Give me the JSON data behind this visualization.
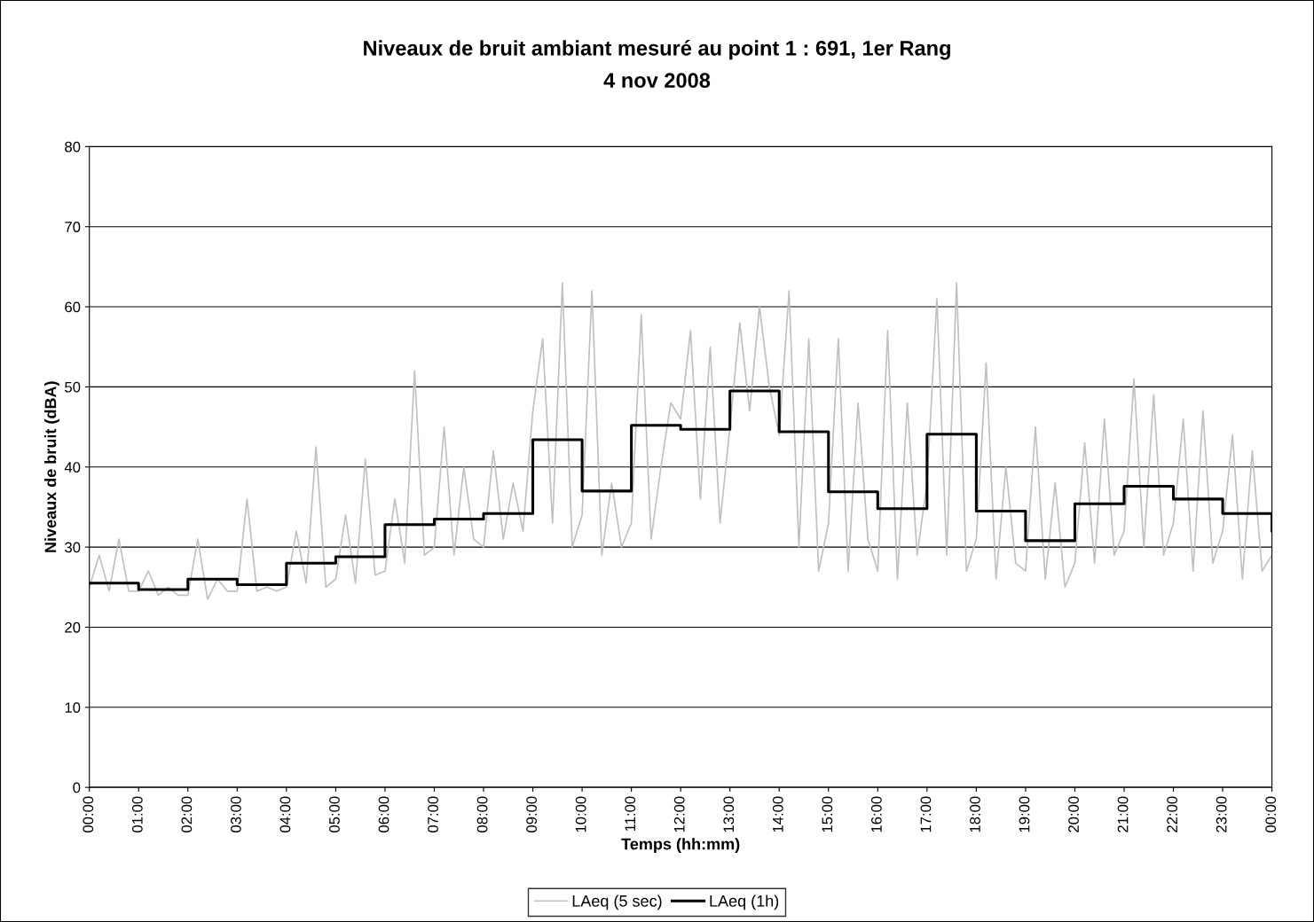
{
  "chart_data": {
    "type": "line",
    "title": "Niveaux de bruit ambiant mesuré au point 1 : 691, 1er Rang",
    "subtitle": "4 nov 2008",
    "xlabel": "Temps (hh:mm)",
    "ylabel": "Niveaux de bruit (dBA)",
    "xlim": [
      0,
      24
    ],
    "ylim": [
      0,
      80
    ],
    "yticks": [
      0,
      10,
      20,
      30,
      40,
      50,
      60,
      70,
      80
    ],
    "xticks": [
      {
        "value": 0,
        "label": "00:00"
      },
      {
        "value": 1,
        "label": "01:00"
      },
      {
        "value": 2,
        "label": "02:00"
      },
      {
        "value": 3,
        "label": "03:00"
      },
      {
        "value": 4,
        "label": "04:00"
      },
      {
        "value": 5,
        "label": "05:00"
      },
      {
        "value": 6,
        "label": "06:00"
      },
      {
        "value": 7,
        "label": "07:00"
      },
      {
        "value": 8,
        "label": "08:00"
      },
      {
        "value": 9,
        "label": "09:00"
      },
      {
        "value": 10,
        "label": "10:00"
      },
      {
        "value": 11,
        "label": "11:00"
      },
      {
        "value": 12,
        "label": "12:00"
      },
      {
        "value": 13,
        "label": "13:00"
      },
      {
        "value": 14,
        "label": "14:00"
      },
      {
        "value": 15,
        "label": "15:00"
      },
      {
        "value": 16,
        "label": "16:00"
      },
      {
        "value": 17,
        "label": "17:00"
      },
      {
        "value": 18,
        "label": "18:00"
      },
      {
        "value": 19,
        "label": "19:00"
      },
      {
        "value": 20,
        "label": "20:00"
      },
      {
        "value": 21,
        "label": "21:00"
      },
      {
        "value": 22,
        "label": "22:00"
      },
      {
        "value": 23,
        "label": "23:00"
      },
      {
        "value": 24,
        "label": "00:00"
      }
    ],
    "grid": "y",
    "legend": "bottom",
    "marker": "none",
    "series": [
      {
        "name": "LAeq (5 sec)",
        "color": "#c0c0c0",
        "x": [
          0,
          0.2,
          0.4,
          0.6,
          0.8,
          1,
          1.2,
          1.4,
          1.6,
          1.8,
          2,
          2.2,
          2.4,
          2.6,
          2.8,
          3,
          3.2,
          3.4,
          3.6,
          3.8,
          4,
          4.2,
          4.4,
          4.6,
          4.8,
          5,
          5.2,
          5.4,
          5.6,
          5.8,
          6,
          6.2,
          6.4,
          6.6,
          6.8,
          7,
          7.2,
          7.4,
          7.6,
          7.8,
          8,
          8.2,
          8.4,
          8.6,
          8.8,
          9,
          9.2,
          9.4,
          9.6,
          9.8,
          10,
          10.2,
          10.4,
          10.6,
          10.8,
          11,
          11.2,
          11.4,
          11.6,
          11.8,
          12,
          12.2,
          12.4,
          12.6,
          12.8,
          13,
          13.2,
          13.4,
          13.6,
          13.8,
          14,
          14.2,
          14.4,
          14.6,
          14.8,
          15,
          15.2,
          15.4,
          15.6,
          15.8,
          16,
          16.2,
          16.4,
          16.6,
          16.8,
          17,
          17.2,
          17.4,
          17.6,
          17.8,
          18,
          18.2,
          18.4,
          18.6,
          18.8,
          19,
          19.2,
          19.4,
          19.6,
          19.8,
          20,
          20.2,
          20.4,
          20.6,
          20.8,
          21,
          21.2,
          21.4,
          21.6,
          21.8,
          22,
          22.2,
          22.4,
          22.6,
          22.8,
          23,
          23.2,
          23.4,
          23.6,
          23.8,
          24
        ],
        "values": [
          25,
          29,
          24.5,
          31,
          24.5,
          24.5,
          27,
          24,
          25,
          24,
          24,
          31,
          23.5,
          26,
          24.5,
          24.5,
          36,
          24.5,
          25,
          24.5,
          25,
          32,
          25.5,
          42.5,
          25,
          26,
          34,
          25.5,
          41,
          26.5,
          27,
          36,
          28,
          52,
          29,
          30,
          45,
          29,
          40,
          31,
          30,
          42,
          31,
          38,
          32,
          47,
          56,
          33,
          63,
          30,
          34,
          62,
          29,
          38,
          30,
          33,
          59,
          31,
          40,
          48,
          46,
          57,
          36,
          55,
          33,
          45,
          58,
          47,
          60,
          50,
          44,
          62,
          30,
          56,
          27,
          33,
          56,
          27,
          48,
          31,
          27,
          57,
          26,
          48,
          29,
          38,
          61,
          29,
          63,
          27,
          31,
          53,
          26,
          40,
          28,
          27,
          45,
          26,
          38,
          25,
          28,
          43,
          28,
          46,
          29,
          32,
          51,
          30,
          49,
          29,
          33,
          46,
          27,
          47,
          28,
          32,
          44,
          26,
          42,
          27,
          29
        ]
      },
      {
        "name": "LAeq (1h)",
        "type": "step",
        "color": "#000000",
        "x": [
          0,
          1,
          2,
          3,
          4,
          5,
          6,
          7,
          8,
          9,
          10,
          11,
          12,
          13,
          14,
          15,
          16,
          17,
          18,
          19,
          20,
          21,
          22,
          23,
          24
        ],
        "values": [
          25.5,
          24.7,
          26.0,
          25.3,
          28.0,
          28.8,
          32.8,
          33.5,
          34.2,
          43.4,
          37.0,
          45.2,
          44.7,
          49.5,
          44.4,
          36.9,
          34.8,
          44.1,
          34.5,
          30.8,
          35.4,
          37.6,
          36.0,
          34.2,
          32
        ]
      }
    ]
  }
}
